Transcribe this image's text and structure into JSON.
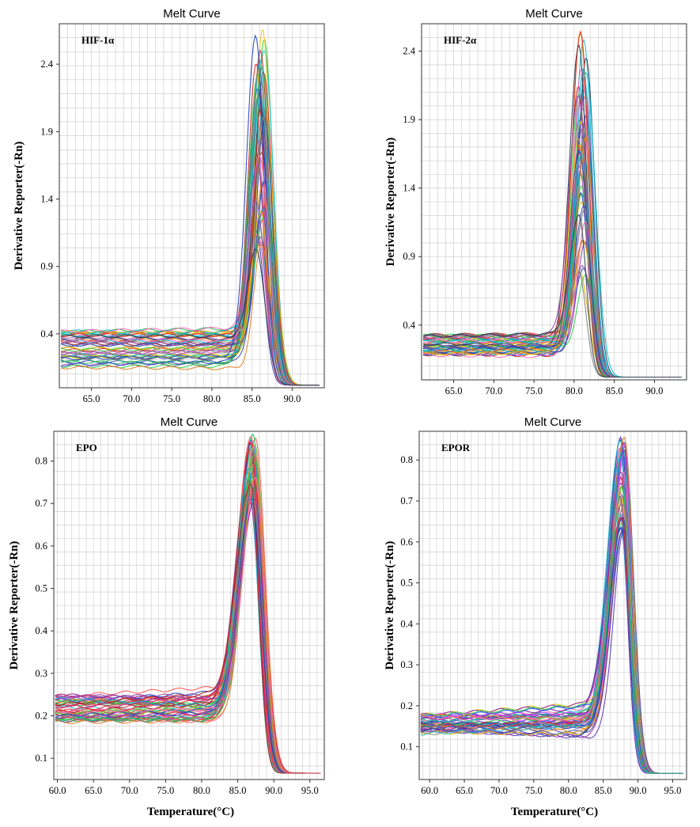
{
  "chart_data": [
    {
      "type": "line",
      "title": "Melt Curve",
      "annotation": "HIF-1α",
      "ylabel": "Derivative  Reporter(-Rn)",
      "xlabel": "",
      "xlim": [
        61,
        94
      ],
      "ylim": [
        0,
        2.7
      ],
      "xticks": [
        "65.0",
        "70.0",
        "75.0",
        "80.0",
        "85.0",
        "90.0"
      ],
      "yticks": [
        "0.4",
        "0.9",
        "1.4",
        "1.9",
        "2.4"
      ],
      "grid": true,
      "curves": {
        "peak_temp": 86.0,
        "peak_spread": 1.2,
        "peak_width": 1.5,
        "rise_left": 1.5,
        "peak_min": 0.95,
        "peak_max": 2.7,
        "base_min": 0.15,
        "base_max": 0.42,
        "end_value": 0.02,
        "count": 48
      },
      "palette": [
        "#d62728",
        "#c0392b",
        "#e6b800",
        "#f1c40f",
        "#2ecc40",
        "#27ae60",
        "#17becf",
        "#00bcd4",
        "#8e44ad",
        "#9b59b6",
        "#1f3fbf",
        "#3949ab",
        "#e67e22",
        "#ff69b4",
        "#7f7f7f",
        "#2c3e50"
      ]
    },
    {
      "type": "line",
      "title": "Melt Curve",
      "annotation": "HIF-2α",
      "ylabel": "Derivative  Reporter(-Rn)",
      "xlabel": "",
      "xlim": [
        61,
        94
      ],
      "ylim": [
        0,
        2.6
      ],
      "xticks": [
        "65.0",
        "70.0",
        "75.0",
        "80.0",
        "85.0",
        "90.0"
      ],
      "yticks": [
        "0.4",
        "0.9",
        "1.4",
        "1.9",
        "2.4"
      ],
      "grid": true,
      "curves": {
        "peak_temp": 81.0,
        "peak_spread": 1.0,
        "peak_width": 1.4,
        "rise_left": 1.4,
        "peak_min": 0.7,
        "peak_max": 2.62,
        "base_min": 0.18,
        "base_max": 0.33,
        "end_value": 0.02,
        "count": 48
      },
      "palette": [
        "#d62728",
        "#c0392b",
        "#e6b800",
        "#f1c40f",
        "#2ecc40",
        "#27ae60",
        "#17becf",
        "#00bcd4",
        "#8e44ad",
        "#9b59b6",
        "#1f3fbf",
        "#3949ab",
        "#e67e22",
        "#ff69b4",
        "#7f7f7f",
        "#2c3e50"
      ]
    },
    {
      "type": "line",
      "title": "Melt Curve",
      "annotation": "EPO",
      "ylabel": "Derivative  Reporter(-Rn)",
      "xlabel": "Temperature(°C)",
      "xlim": [
        59.5,
        97
      ],
      "ylim": [
        0.05,
        0.87
      ],
      "xticks": [
        "60.0",
        "65.0",
        "70.0",
        "75.0",
        "80.0",
        "85.0",
        "90.0",
        "95.0"
      ],
      "yticks": [
        "0.1",
        "0.2",
        "0.3",
        "0.4",
        "0.5",
        "0.6",
        "0.7",
        "0.8"
      ],
      "grid": true,
      "curves": {
        "peak_temp": 87.0,
        "peak_spread": 1.0,
        "peak_width": 1.7,
        "rise_left": 2.4,
        "peak_min": 0.7,
        "peak_max": 0.87,
        "base_min": 0.18,
        "base_max": 0.25,
        "end_value": 0.065,
        "count": 48
      },
      "palette": [
        "#d62728",
        "#e91e63",
        "#c2185b",
        "#ff5252",
        "#2ecc40",
        "#4caf50",
        "#8bc34a",
        "#00c853",
        "#9c27b0",
        "#8e44ad",
        "#1f3fbf",
        "#17becf",
        "#e67e22",
        "#7f7f7f",
        "#ff69b4",
        "#b71c1c"
      ]
    },
    {
      "type": "line",
      "title": "Melt Curve",
      "annotation": "EPOR",
      "ylabel": "Derivative  Reporter(-Rn)",
      "xlabel": "Temperature(°C)",
      "xlim": [
        58.5,
        97
      ],
      "ylim": [
        0.02,
        0.87
      ],
      "xticks": [
        "60.0",
        "65.0",
        "70.0",
        "75.0",
        "80.0",
        "85.0",
        "90.0",
        "95.0"
      ],
      "yticks": [
        "0.1",
        "0.2",
        "0.3",
        "0.4",
        "0.5",
        "0.6",
        "0.7",
        "0.8"
      ],
      "grid": true,
      "curves": {
        "peak_temp": 87.8,
        "peak_spread": 0.8,
        "peak_width": 1.6,
        "rise_left": 2.3,
        "peak_min": 0.62,
        "peak_max": 0.86,
        "base_min": 0.13,
        "base_max": 0.18,
        "end_value": 0.035,
        "count": 48
      },
      "palette": [
        "#9c27b0",
        "#8e24aa",
        "#7b1fa2",
        "#e040fb",
        "#1f3fbf",
        "#3949ab",
        "#2962ff",
        "#5e35b1",
        "#d62728",
        "#e67e22",
        "#f1c40f",
        "#17becf",
        "#2ecc40",
        "#ff69b4",
        "#7f7f7f",
        "#26a69a"
      ]
    }
  ]
}
